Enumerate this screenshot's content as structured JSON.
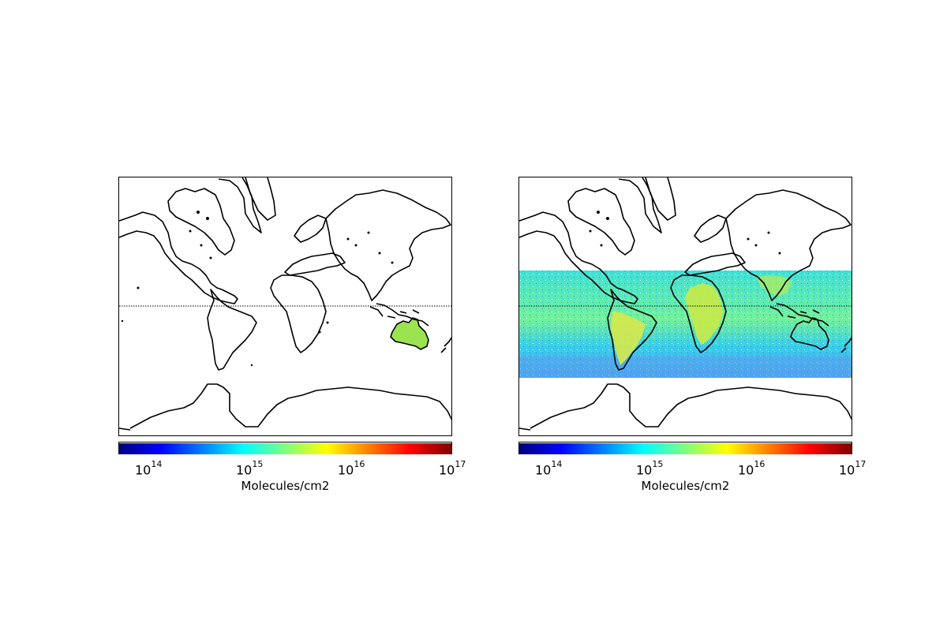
{
  "colormap": {
    "name": "jet",
    "stops": [
      "#00007f",
      "#0000ff",
      "#007fff",
      "#00ffff",
      "#7fff7f",
      "#ffff00",
      "#ff7f00",
      "#ff0000",
      "#7f0000"
    ]
  },
  "panels": [
    {
      "id": "left",
      "projection": "mercator",
      "equator_line": "dotted",
      "colorbar": {
        "scale": "log",
        "range": [
          50000000000000.0,
          1e+17
        ],
        "ticks": [
          {
            "base": "10",
            "exp": "14"
          },
          {
            "base": "10",
            "exp": "15"
          },
          {
            "base": "10",
            "exp": "16"
          },
          {
            "base": "10",
            "exp": "17"
          }
        ],
        "label": "Molecules/cm2"
      },
      "data_coverage": "Australia only",
      "dominant_value": "2e15–5e15"
    },
    {
      "id": "right",
      "projection": "mercator",
      "equator_line": "dotted",
      "colorbar": {
        "scale": "log",
        "range": [
          50000000000000.0,
          1e+17
        ],
        "ticks": [
          {
            "base": "10",
            "exp": "14"
          },
          {
            "base": "10",
            "exp": "15"
          },
          {
            "base": "10",
            "exp": "16"
          },
          {
            "base": "10",
            "exp": "17"
          }
        ],
        "label": "Molecules/cm2"
      },
      "data_coverage": "latitude band approx. 40N to 40S",
      "dominant_value": "1e15–5e15"
    }
  ]
}
